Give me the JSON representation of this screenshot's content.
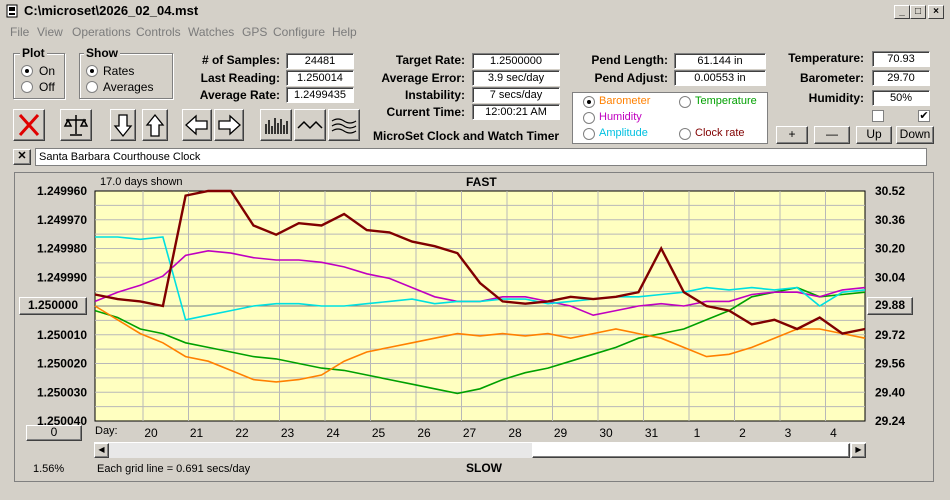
{
  "window": {
    "title": "C:\\microset\\2026_02_04.mst"
  },
  "menu": [
    "File",
    "View",
    "Operations",
    "Controls",
    "Watches",
    "GPS",
    "Configure",
    "Help"
  ],
  "plot": {
    "title": "Plot",
    "on": "On",
    "off": "Off",
    "selected": "On"
  },
  "show": {
    "title": "Show",
    "rates": "Rates",
    "averages": "Averages",
    "selected": "Rates"
  },
  "stats1": {
    "samples_label": "# of Samples:",
    "samples": "24481",
    "last_label": "Last Reading:",
    "last": "1.250014",
    "avg_label": "Average Rate:",
    "avg": "1.2499435"
  },
  "stats2": {
    "target_label": "Target Rate:",
    "target": "1.2500000",
    "err_label": "Average Error:",
    "err": "3.9 sec/day",
    "inst_label": "Instability:",
    "inst": "7 secs/day",
    "time_label": "Current Time:",
    "time": "12:00:21 AM"
  },
  "pend": {
    "len_label": "Pend Length:",
    "len": "61.144 in",
    "adj_label": "Pend Adjust:",
    "adj": "0.00553 in"
  },
  "env": {
    "temp_label": "Temperature:",
    "temp": "70.93",
    "baro_label": "Barometer:",
    "baro": "29.70",
    "hum_label": "Humidity:",
    "hum": "50%"
  },
  "sensor_select": {
    "barometer": "Barometer",
    "temperature": "Temperature",
    "humidity": "Humidity",
    "amplitude": "Amplitude",
    "clock_rate": "Clock rate",
    "selected": "Barometer",
    "colors": {
      "barometer": "#ff8000",
      "temperature": "#00a000",
      "humidity": "#c000c0",
      "amplitude": "#00c0c0",
      "clock_rate": "#800000"
    }
  },
  "adjust_buttons": {
    "plus": "+",
    "minus": "—",
    "up": "Up",
    "down": "Down"
  },
  "subtitle": "MicroSet Clock and Watch Timer",
  "clock_name": "Santa Barbara Courthouse Clock",
  "chart": {
    "days_shown": "17.0 days shown",
    "fast": "FAST",
    "slow": "SLOW",
    "grid_note": "Each grid line = 0.691 secs/day",
    "percent": "1.56%",
    "left_button": "1.250000",
    "right_button": "29.88",
    "zero_button": "0",
    "day_label": "Day:"
  },
  "chart_data": {
    "type": "line",
    "left_ticks": [
      "1.249960",
      "1.249970",
      "1.249980",
      "1.249990",
      "1.250000",
      "1.250010",
      "1.250020",
      "1.250030",
      "1.250040"
    ],
    "right_ticks": [
      "30.52",
      "30.36",
      "30.20",
      "30.04",
      "29.88",
      "29.72",
      "29.56",
      "29.40",
      "29.24"
    ],
    "x_ticks": [
      "20",
      "21",
      "22",
      "23",
      "24",
      "25",
      "26",
      "27",
      "28",
      "29",
      "30",
      "31",
      "1",
      "2",
      "3",
      "4"
    ],
    "left_range": [
      1.24996,
      1.25004
    ],
    "right_range": [
      29.24,
      30.52
    ],
    "grid": true,
    "series": [
      {
        "color": "#00a000",
        "values": [
          0.52,
          0.55,
          0.6,
          0.62,
          0.66,
          0.68,
          0.7,
          0.72,
          0.73,
          0.75,
          0.77,
          0.78,
          0.8,
          0.82,
          0.84,
          0.86,
          0.88,
          0.86,
          0.82,
          0.79,
          0.77,
          0.74,
          0.71,
          0.68,
          0.64,
          0.62,
          0.6,
          0.56,
          0.52,
          0.46,
          0.44,
          0.42,
          0.46,
          0.45,
          0.44
        ]
      },
      {
        "color": "#ff8000",
        "values": [
          0.5,
          0.56,
          0.62,
          0.66,
          0.72,
          0.74,
          0.78,
          0.82,
          0.83,
          0.82,
          0.8,
          0.74,
          0.7,
          0.68,
          0.66,
          0.64,
          0.62,
          0.63,
          0.62,
          0.63,
          0.62,
          0.64,
          0.62,
          0.6,
          0.62,
          0.64,
          0.68,
          0.72,
          0.71,
          0.68,
          0.64,
          0.6,
          0.6,
          0.62,
          0.64
        ]
      },
      {
        "color": "#c000c0",
        "values": [
          0.48,
          0.44,
          0.41,
          0.37,
          0.28,
          0.26,
          0.27,
          0.29,
          0.3,
          0.3,
          0.31,
          0.33,
          0.36,
          0.38,
          0.42,
          0.46,
          0.48,
          0.48,
          0.46,
          0.46,
          0.48,
          0.5,
          0.54,
          0.52,
          0.5,
          0.49,
          0.5,
          0.48,
          0.48,
          0.45,
          0.44,
          0.44,
          0.46,
          0.43,
          0.42
        ]
      },
      {
        "color": "#00e0e0",
        "values": [
          0.2,
          0.2,
          0.21,
          0.2,
          0.56,
          0.54,
          0.52,
          0.5,
          0.49,
          0.49,
          0.5,
          0.5,
          0.49,
          0.48,
          0.47,
          0.49,
          0.48,
          0.48,
          0.47,
          0.47,
          0.49,
          0.48,
          0.47,
          0.46,
          0.46,
          0.45,
          0.44,
          0.42,
          0.43,
          0.42,
          0.43,
          0.42,
          0.5,
          0.44,
          0.43
        ]
      },
      {
        "color": "#800000",
        "values": [
          0.45,
          0.47,
          0.48,
          0.5,
          0.02,
          0.0,
          0.0,
          0.15,
          0.19,
          0.14,
          0.15,
          0.1,
          0.17,
          0.18,
          0.22,
          0.24,
          0.27,
          0.4,
          0.48,
          0.49,
          0.48,
          0.46,
          0.47,
          0.46,
          0.44,
          0.25,
          0.44,
          0.5,
          0.52,
          0.58,
          0.56,
          0.6,
          0.55,
          0.62,
          0.6
        ]
      }
    ]
  }
}
